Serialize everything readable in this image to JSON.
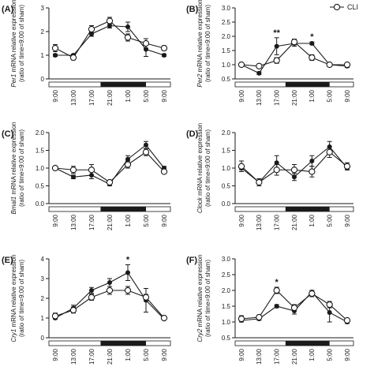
{
  "legend": {
    "open_label": "CLI"
  },
  "colors": {
    "line": "#1a1a1a",
    "open_fill": "#ffffff",
    "closed_fill": "#1a1a1a",
    "axis": "#1a1a1a"
  },
  "chart_data": [
    {
      "type": "line",
      "panel_label": "(A)",
      "gene": "Per1",
      "ylabel_suffix": " mRNA relative expression",
      "ylabel_line2": "(ratio of time=9:00 of sham)",
      "ylim": [
        0,
        3.0
      ],
      "yticks": [
        "0",
        "1",
        "2",
        "3"
      ],
      "categories": [
        "9:00",
        "13:00",
        "17:00",
        "21:00",
        "1:00",
        "5:00",
        "9:00"
      ],
      "x": [
        0,
        1,
        2,
        3,
        4,
        5,
        6
      ],
      "dark_phase": [
        2.5,
        5.0
      ],
      "series": [
        {
          "marker": "closed",
          "values": [
            1.0,
            1.0,
            1.9,
            2.25,
            2.2,
            1.25,
            1.0
          ],
          "errors": [
            0.05,
            0.05,
            0.1,
            0.1,
            0.2,
            0.3,
            0.05
          ]
        },
        {
          "marker": "open",
          "name": "CLI",
          "values": [
            1.3,
            0.9,
            2.1,
            2.45,
            1.75,
            1.5,
            1.3
          ],
          "errors": [
            0.15,
            0.1,
            0.15,
            0.15,
            0.15,
            0.2,
            0.1
          ]
        }
      ],
      "annotations": []
    },
    {
      "type": "line",
      "panel_label": "(B)",
      "gene": "Per2",
      "ylabel_suffix": " mRNA relative expression",
      "ylabel_line2": "(ratio of time=9:00 of sham)",
      "ylim": [
        0.5,
        3.0
      ],
      "yticks": [
        "0.5",
        "1.0",
        "1.5",
        "2.0",
        "2.5",
        "3.0"
      ],
      "categories": [
        "9:00",
        "13:00",
        "17:00",
        "21:00",
        "1:00",
        "5:00",
        "9:00"
      ],
      "x": [
        0,
        1,
        2,
        3,
        4,
        5,
        6
      ],
      "dark_phase": [
        2.5,
        5.0
      ],
      "series": [
        {
          "marker": "closed",
          "values": [
            1.0,
            0.7,
            1.65,
            1.75,
            1.75,
            1.0,
            0.95
          ],
          "errors": [
            0.05,
            0.05,
            0.3,
            0.1,
            0.05,
            0.05,
            0.05
          ]
        },
        {
          "marker": "open",
          "name": "CLI",
          "values": [
            1.0,
            0.95,
            1.15,
            1.8,
            1.25,
            1.0,
            1.0
          ],
          "errors": [
            0.05,
            0.05,
            0.1,
            0.1,
            0.1,
            0.05,
            0.05
          ]
        }
      ],
      "annotations": [
        {
          "x": 2,
          "text": "**"
        },
        {
          "x": 4,
          "text": "*"
        }
      ]
    },
    {
      "type": "line",
      "panel_label": "(C)",
      "gene": "Bmal1",
      "ylabel_suffix": " mRNA relative expression",
      "ylabel_line2": "(ratio of time=9:00 of sham)",
      "ylim": [
        0,
        2.0
      ],
      "yticks": [
        "0.0",
        "0.5",
        "1.0",
        "1.5",
        "2.0"
      ],
      "categories": [
        "9:00",
        "13:00",
        "17:00",
        "21:00",
        "1:00",
        "5:00",
        "9:00"
      ],
      "x": [
        0,
        1,
        2,
        3,
        4,
        5,
        6
      ],
      "dark_phase": [
        2.5,
        5.0
      ],
      "series": [
        {
          "marker": "closed",
          "values": [
            1.0,
            0.75,
            0.8,
            0.55,
            1.25,
            1.65,
            1.0
          ],
          "errors": [
            0.05,
            0.05,
            0.1,
            0.05,
            0.1,
            0.1,
            0.05
          ]
        },
        {
          "marker": "open",
          "name": "CLI",
          "values": [
            1.0,
            0.95,
            0.95,
            0.6,
            1.1,
            1.45,
            0.9
          ],
          "errors": [
            0.05,
            0.1,
            0.15,
            0.05,
            0.1,
            0.1,
            0.05
          ]
        }
      ],
      "annotations": []
    },
    {
      "type": "line",
      "panel_label": "(D)",
      "gene": "Clock",
      "ylabel_suffix": " mRNA relative expression",
      "ylabel_line2": "(ratio of time=9:00 of sham)",
      "ylim": [
        0,
        2.0
      ],
      "yticks": [
        "0.0",
        "0.5",
        "1.0",
        "1.5",
        "2.0"
      ],
      "categories": [
        "9:00",
        "13:00",
        "17:00",
        "21:00",
        "1:00",
        "5:00",
        "9:00"
      ],
      "x": [
        0,
        1,
        2,
        3,
        4,
        5,
        6
      ],
      "dark_phase": [
        2.5,
        5.0
      ],
      "series": [
        {
          "marker": "closed",
          "values": [
            1.0,
            0.6,
            1.15,
            0.75,
            1.2,
            1.6,
            1.0
          ],
          "errors": [
            0.05,
            0.05,
            0.2,
            0.1,
            0.15,
            0.15,
            0.05
          ]
        },
        {
          "marker": "open",
          "name": "CLI",
          "values": [
            1.05,
            0.6,
            0.95,
            0.95,
            0.9,
            1.45,
            1.05
          ],
          "errors": [
            0.15,
            0.1,
            0.15,
            0.15,
            0.15,
            0.15,
            0.1
          ]
        }
      ],
      "annotations": []
    },
    {
      "type": "line",
      "panel_label": "(E)",
      "gene": "Cry1",
      "ylabel_suffix": " mRNA relative expression",
      "ylabel_line2": "(ratio of time=9:00 of sham)",
      "ylim": [
        0,
        4.0
      ],
      "yticks": [
        "0",
        "1",
        "2",
        "3",
        "4"
      ],
      "categories": [
        "9:00",
        "13:00",
        "17:00",
        "21:00",
        "1:00",
        "5:00",
        "9:00"
      ],
      "x": [
        0,
        1,
        2,
        3,
        4,
        5,
        6
      ],
      "dark_phase": [
        2.5,
        5.0
      ],
      "series": [
        {
          "marker": "closed",
          "values": [
            1.0,
            1.5,
            2.4,
            2.8,
            3.3,
            1.9,
            0.95
          ],
          "errors": [
            0.05,
            0.15,
            0.15,
            0.2,
            0.4,
            0.6,
            0.05
          ]
        },
        {
          "marker": "open",
          "name": "CLI",
          "values": [
            1.1,
            1.4,
            2.05,
            2.4,
            2.4,
            2.05,
            1.0
          ],
          "errors": [
            0.15,
            0.15,
            0.15,
            0.2,
            0.2,
            0.15,
            0.1
          ]
        }
      ],
      "annotations": [
        {
          "x": 4,
          "text": "*"
        }
      ]
    },
    {
      "type": "line",
      "panel_label": "(F)",
      "gene": "Cry2",
      "ylabel_suffix": " mRNA relative expression",
      "ylabel_line2": "(ratio of time=9:00 of sham)",
      "ylim": [
        0.5,
        3.0
      ],
      "yticks": [
        "0.5",
        "1.0",
        "1.5",
        "2.0",
        "2.5",
        "3.0"
      ],
      "categories": [
        "9:00",
        "13:00",
        "17:00",
        "21:00",
        "1:00",
        "5:00",
        "9:00"
      ],
      "x": [
        0,
        1,
        2,
        3,
        4,
        5,
        6
      ],
      "dark_phase": [
        2.5,
        5.0
      ],
      "series": [
        {
          "marker": "closed",
          "values": [
            1.05,
            1.1,
            1.5,
            1.35,
            1.95,
            1.3,
            1.0
          ],
          "errors": [
            0.05,
            0.05,
            0.05,
            0.1,
            0.05,
            0.3,
            0.05
          ]
        },
        {
          "marker": "open",
          "name": "CLI",
          "values": [
            1.1,
            1.15,
            2.0,
            1.45,
            1.9,
            1.55,
            1.05
          ],
          "errors": [
            0.1,
            0.05,
            0.1,
            0.1,
            0.1,
            0.1,
            0.05
          ]
        }
      ],
      "annotations": [
        {
          "x": 2,
          "text": "*"
        }
      ]
    }
  ]
}
